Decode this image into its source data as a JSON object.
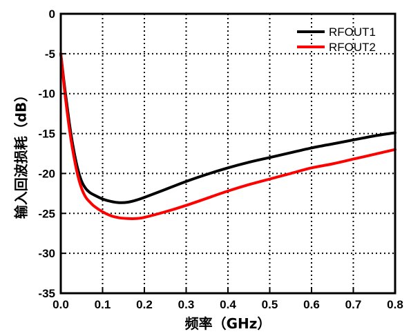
{
  "chart_data": {
    "type": "line",
    "xlabel": "频率（GHz）",
    "ylabel": "输入回波损耗（dB）",
    "xlim": [
      0.0,
      0.8
    ],
    "ylim": [
      -35,
      0
    ],
    "xticks": [
      "0.0",
      "0.1",
      "0.2",
      "0.3",
      "0.4",
      "0.5",
      "0.6",
      "0.7",
      "0.8"
    ],
    "yticks": [
      "0",
      "-5",
      "-10",
      "-15",
      "-20",
      "-25",
      "-30",
      "-35"
    ],
    "grid": true,
    "legend_position": "top-right",
    "series": [
      {
        "name": "RFOUT1",
        "color": "#000000",
        "x": [
          0.0,
          0.01,
          0.02,
          0.03,
          0.04,
          0.05,
          0.06,
          0.07,
          0.08,
          0.1,
          0.12,
          0.14,
          0.16,
          0.18,
          0.2,
          0.25,
          0.3,
          0.35,
          0.4,
          0.45,
          0.5,
          0.55,
          0.6,
          0.65,
          0.7,
          0.75,
          0.8
        ],
        "y": [
          -5.0,
          -9.5,
          -13.5,
          -16.8,
          -19.3,
          -21.0,
          -21.9,
          -22.4,
          -22.7,
          -23.2,
          -23.5,
          -23.65,
          -23.6,
          -23.35,
          -23.0,
          -22.0,
          -21.0,
          -20.1,
          -19.3,
          -18.6,
          -18.0,
          -17.4,
          -16.8,
          -16.3,
          -15.8,
          -15.3,
          -14.9
        ]
      },
      {
        "name": "RFOUT2",
        "color": "#ff0000",
        "x": [
          0.0,
          0.01,
          0.02,
          0.03,
          0.04,
          0.05,
          0.06,
          0.07,
          0.08,
          0.1,
          0.12,
          0.14,
          0.16,
          0.18,
          0.2,
          0.25,
          0.3,
          0.35,
          0.4,
          0.45,
          0.5,
          0.55,
          0.6,
          0.65,
          0.7,
          0.75,
          0.8
        ],
        "y": [
          -5.0,
          -10.0,
          -14.2,
          -17.5,
          -20.1,
          -21.9,
          -23.0,
          -23.6,
          -24.1,
          -24.8,
          -25.3,
          -25.55,
          -25.65,
          -25.65,
          -25.5,
          -24.8,
          -24.0,
          -23.1,
          -22.2,
          -21.4,
          -20.7,
          -20.0,
          -19.3,
          -18.8,
          -18.2,
          -17.6,
          -17.0
        ]
      }
    ]
  }
}
